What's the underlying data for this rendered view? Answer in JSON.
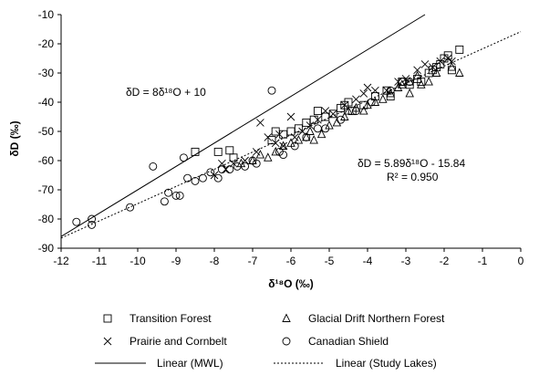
{
  "chart_data": {
    "type": "scatter",
    "xlabel": "δ¹⁸O (‰)",
    "ylabel": "δD (‰)",
    "xlim": [
      -12,
      0
    ],
    "ylim": [
      -90,
      -10
    ],
    "x_ticks": [
      "-12",
      "-11",
      "-10",
      "-9",
      "-8",
      "-7",
      "-6",
      "-5",
      "-4",
      "-3",
      "-2",
      "-1",
      "0"
    ],
    "y_ticks": [
      "-90",
      "-80",
      "-70",
      "-60",
      "-50",
      "-40",
      "-30",
      "-20",
      "-10"
    ],
    "grid": false,
    "legend_position": "bottom",
    "annotations": {
      "mwl_equation": "δD = 8δ¹⁸O + 10",
      "lakes_equation": "δD = 5.89δ¹⁸O - 15.84",
      "lakes_r2": "R² = 0.950"
    },
    "lines": [
      {
        "name": "Linear (MWL)",
        "style": "solid",
        "slope": 8,
        "intercept": 10
      },
      {
        "name": "Linear (Study Lakes)",
        "style": "dotted",
        "slope": 5.89,
        "intercept": -15.84
      }
    ],
    "series": [
      {
        "name": "Transition Forest",
        "marker": "square",
        "points": [
          [
            -8.5,
            -57
          ],
          [
            -7.9,
            -57
          ],
          [
            -7.6,
            -56.5
          ],
          [
            -7.5,
            -59
          ],
          [
            -6.5,
            -53
          ],
          [
            -6.4,
            -50
          ],
          [
            -6.2,
            -51
          ],
          [
            -6.0,
            -50
          ],
          [
            -5.8,
            -49
          ],
          [
            -5.6,
            -47
          ],
          [
            -5.4,
            -46
          ],
          [
            -5.3,
            -43
          ],
          [
            -5.1,
            -45
          ],
          [
            -4.9,
            -44
          ],
          [
            -4.7,
            -42
          ],
          [
            -4.6,
            -41
          ],
          [
            -4.5,
            -40
          ],
          [
            -4.4,
            -43
          ],
          [
            -4.1,
            -41
          ],
          [
            -3.8,
            -38
          ],
          [
            -3.5,
            -36
          ],
          [
            -3.4,
            -38
          ],
          [
            -3.1,
            -33
          ],
          [
            -2.9,
            -34
          ],
          [
            -2.7,
            -32
          ],
          [
            -2.6,
            -33
          ],
          [
            -2.4,
            -30
          ],
          [
            -2.2,
            -28
          ],
          [
            -2.1,
            -27
          ],
          [
            -2.0,
            -25
          ],
          [
            -1.9,
            -24
          ],
          [
            -1.8,
            -29
          ],
          [
            -1.6,
            -22
          ],
          [
            -2.3,
            -29
          ]
        ]
      },
      {
        "name": "Glacial Drift Northern Forest",
        "marker": "triangle",
        "points": [
          [
            -7.3,
            -61
          ],
          [
            -7.0,
            -60
          ],
          [
            -6.8,
            -58
          ],
          [
            -6.6,
            -59
          ],
          [
            -6.4,
            -57
          ],
          [
            -6.2,
            -55
          ],
          [
            -6.0,
            -54
          ],
          [
            -5.8,
            -53
          ],
          [
            -5.6,
            -52
          ],
          [
            -5.5,
            -50
          ],
          [
            -5.4,
            -53
          ],
          [
            -5.2,
            -51
          ],
          [
            -5.0,
            -48
          ],
          [
            -4.8,
            -47
          ],
          [
            -4.6,
            -45
          ],
          [
            -4.5,
            -43
          ],
          [
            -4.3,
            -42
          ],
          [
            -4.1,
            -43
          ],
          [
            -4.0,
            -41
          ],
          [
            -3.8,
            -40
          ],
          [
            -3.6,
            -39
          ],
          [
            -3.4,
            -37
          ],
          [
            -3.2,
            -35
          ],
          [
            -3.1,
            -34
          ],
          [
            -2.9,
            -33
          ],
          [
            -2.7,
            -31
          ],
          [
            -2.6,
            -34
          ],
          [
            -2.4,
            -33
          ],
          [
            -2.2,
            -30
          ],
          [
            -1.8,
            -28
          ],
          [
            -1.6,
            -30
          ],
          [
            -2.9,
            -37
          ]
        ]
      },
      {
        "name": "Prairie and Cornbelt",
        "marker": "x",
        "points": [
          [
            -8.0,
            -65
          ],
          [
            -7.8,
            -61
          ],
          [
            -7.7,
            -63
          ],
          [
            -7.5,
            -61
          ],
          [
            -7.2,
            -60
          ],
          [
            -6.9,
            -57
          ],
          [
            -6.6,
            -52
          ],
          [
            -6.4,
            -54
          ],
          [
            -6.3,
            -51
          ],
          [
            -6.2,
            -55
          ],
          [
            -6.0,
            -45
          ],
          [
            -5.9,
            -52
          ],
          [
            -5.7,
            -50
          ],
          [
            -5.5,
            -48
          ],
          [
            -5.3,
            -46
          ],
          [
            -5.1,
            -43
          ],
          [
            -4.9,
            -44
          ],
          [
            -4.6,
            -41
          ],
          [
            -4.3,
            -39
          ],
          [
            -4.1,
            -37
          ],
          [
            -4.0,
            -35
          ],
          [
            -3.8,
            -36
          ],
          [
            -3.5,
            -36
          ],
          [
            -3.2,
            -33
          ],
          [
            -3.0,
            -32
          ],
          [
            -2.7,
            -29
          ],
          [
            -2.5,
            -27
          ],
          [
            -2.3,
            -28
          ],
          [
            -2.1,
            -26
          ],
          [
            -1.9,
            -25
          ],
          [
            -1.8,
            -26
          ],
          [
            -6.8,
            -47
          ]
        ]
      },
      {
        "name": "Canadian Shield",
        "marker": "circle",
        "points": [
          [
            -11.6,
            -81
          ],
          [
            -11.2,
            -80
          ],
          [
            -11.2,
            -82
          ],
          [
            -10.2,
            -76
          ],
          [
            -9.6,
            -62
          ],
          [
            -9.3,
            -74
          ],
          [
            -9.2,
            -71
          ],
          [
            -9.0,
            -72
          ],
          [
            -8.9,
            -72
          ],
          [
            -8.8,
            -59
          ],
          [
            -8.7,
            -66
          ],
          [
            -8.5,
            -67
          ],
          [
            -8.3,
            -66
          ],
          [
            -8.1,
            -64
          ],
          [
            -7.9,
            -66
          ],
          [
            -7.8,
            -63
          ],
          [
            -7.6,
            -63
          ],
          [
            -7.4,
            -62
          ],
          [
            -7.2,
            -62
          ],
          [
            -7.0,
            -60
          ],
          [
            -6.9,
            -61
          ],
          [
            -6.5,
            -36
          ],
          [
            -6.3,
            -57
          ],
          [
            -6.2,
            -58
          ],
          [
            -5.9,
            -55
          ],
          [
            -5.6,
            -52
          ],
          [
            -5.3,
            -49
          ],
          [
            -5.1,
            -49
          ],
          [
            -4.7,
            -46
          ],
          [
            -4.3,
            -43
          ],
          [
            -3.9,
            -40
          ],
          [
            -3.4,
            -36
          ],
          [
            -3.1,
            -33
          ],
          [
            -2.9,
            -33
          ]
        ]
      }
    ]
  }
}
